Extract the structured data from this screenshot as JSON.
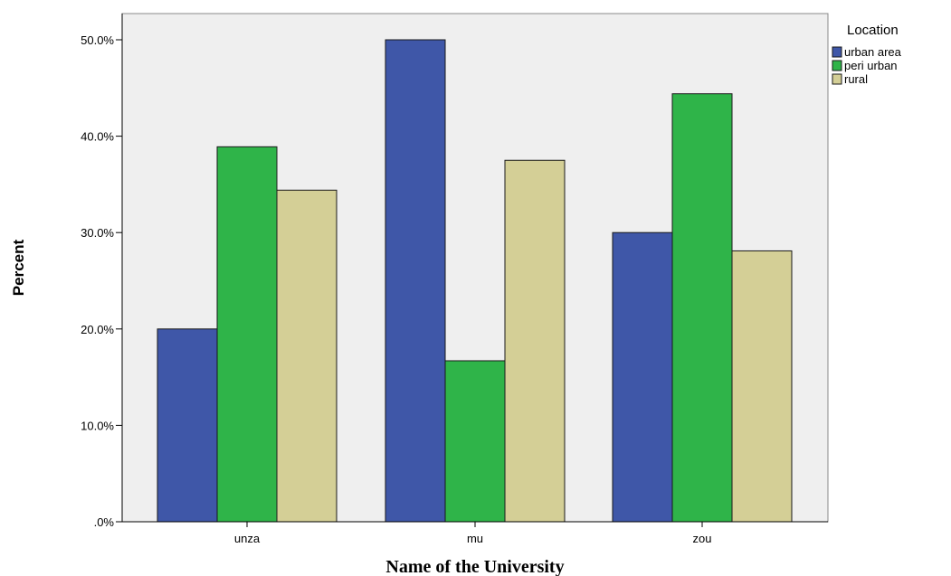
{
  "chart_data": {
    "type": "bar",
    "title": "",
    "xlabel": "Name of the University",
    "ylabel": "Percent",
    "categories": [
      "unza",
      "mu",
      "zou"
    ],
    "series": [
      {
        "name": "urban area",
        "color": "#3f57a8",
        "values": [
          20.0,
          50.0,
          30.0
        ]
      },
      {
        "name": "peri urban",
        "color": "#2fb449",
        "values": [
          38.9,
          16.7,
          44.4
        ]
      },
      {
        "name": "rural",
        "color": "#d4cf96",
        "values": [
          34.4,
          37.5,
          28.1
        ]
      }
    ],
    "ylim": [
      0,
      52.5
    ],
    "yticks": [
      0,
      10,
      20,
      30,
      40,
      50
    ],
    "ytick_labels": [
      ".0%",
      "10.0%",
      "20.0%",
      "30.0%",
      "40.0%",
      "50.0%"
    ],
    "legend": {
      "title": "Location",
      "placement": "top-right"
    },
    "plot_background": "#efefef",
    "grid": false
  }
}
